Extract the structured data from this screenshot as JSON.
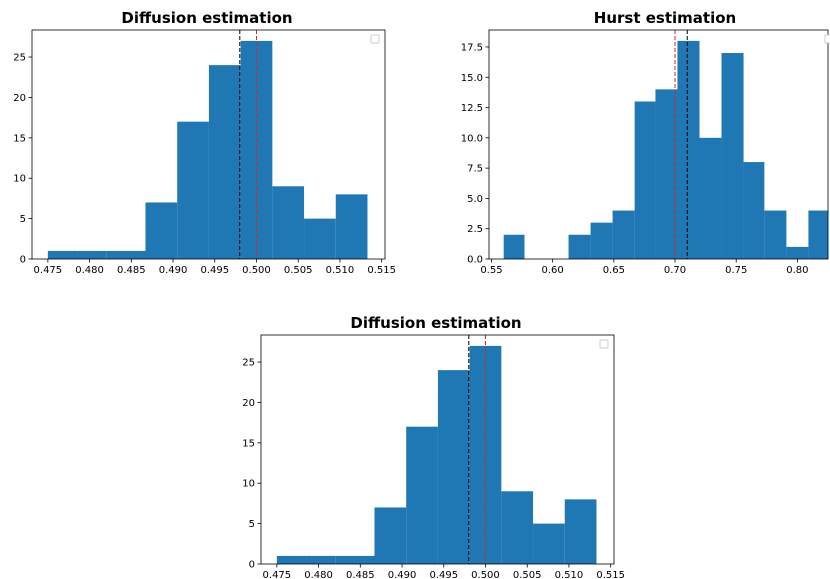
{
  "chart_data": [
    {
      "type": "bar",
      "title": "Diffusion estimation",
      "xlabel": "",
      "ylabel": "",
      "xlim": [
        0.4731,
        0.5154
      ],
      "ylim": [
        0,
        28.35
      ],
      "bins": [
        {
          "x0": 0.475,
          "x1": 0.4785,
          "count": 1
        },
        {
          "x0": 0.4785,
          "x1": 0.482,
          "count": 1
        },
        {
          "x0": 0.482,
          "x1": 0.4867,
          "count": 1
        },
        {
          "x0": 0.4867,
          "x1": 0.4905,
          "count": 7
        },
        {
          "x0": 0.4905,
          "x1": 0.4943,
          "count": 17
        },
        {
          "x0": 0.4943,
          "x1": 0.4981,
          "count": 24
        },
        {
          "x0": 0.4981,
          "x1": 0.5019,
          "count": 27
        },
        {
          "x0": 0.5019,
          "x1": 0.5057,
          "count": 9
        },
        {
          "x0": 0.5057,
          "x1": 0.5095,
          "count": 5
        },
        {
          "x0": 0.5095,
          "x1": 0.5133,
          "count": 8
        }
      ],
      "vlines": [
        {
          "x": 0.498,
          "color": "#000000",
          "style": "dashed"
        },
        {
          "x": 0.5,
          "color": "#d62728",
          "style": "dashed"
        }
      ],
      "xticks": [
        "0.475",
        "0.480",
        "0.485",
        "0.490",
        "0.495",
        "0.500",
        "0.505",
        "0.510",
        "0.515"
      ],
      "yticks": [
        "0",
        "5",
        "10",
        "15",
        "20",
        "25"
      ],
      "legend": "top-right (empty)",
      "grid": false,
      "bar_color": "#1f77b4"
    },
    {
      "type": "bar",
      "title": "Hurst estimation",
      "xlabel": "",
      "ylabel": "",
      "xlim": [
        0.548,
        0.825
      ],
      "ylim": [
        0,
        18.9
      ],
      "bins": [
        {
          "x0": 0.56,
          "x1": 0.577,
          "count": 2
        },
        {
          "x0": 0.577,
          "x1": 0.595,
          "count": 0
        },
        {
          "x0": 0.595,
          "x1": 0.613,
          "count": 0
        },
        {
          "x0": 0.613,
          "x1": 0.631,
          "count": 2
        },
        {
          "x0": 0.631,
          "x1": 0.649,
          "count": 3
        },
        {
          "x0": 0.649,
          "x1": 0.667,
          "count": 4
        },
        {
          "x0": 0.667,
          "x1": 0.684,
          "count": 13
        },
        {
          "x0": 0.684,
          "x1": 0.702,
          "count": 14
        },
        {
          "x0": 0.702,
          "x1": 0.72,
          "count": 18
        },
        {
          "x0": 0.72,
          "x1": 0.738,
          "count": 10
        },
        {
          "x0": 0.738,
          "x1": 0.756,
          "count": 17
        },
        {
          "x0": 0.756,
          "x1": 0.773,
          "count": 8
        },
        {
          "x0": 0.773,
          "x1": 0.791,
          "count": 4
        },
        {
          "x0": 0.791,
          "x1": 0.809,
          "count": 1
        },
        {
          "x0": 0.809,
          "x1": 0.825,
          "count": 4
        }
      ],
      "vlines": [
        {
          "x": 0.7,
          "color": "#d62728",
          "style": "dashed"
        },
        {
          "x": 0.71,
          "color": "#000000",
          "style": "dashed"
        }
      ],
      "xticks": [
        "0.55",
        "0.60",
        "0.65",
        "0.70",
        "0.75",
        "0.80"
      ],
      "yticks": [
        "0.0",
        "2.5",
        "5.0",
        "7.5",
        "10.0",
        "12.5",
        "15.0",
        "17.5"
      ],
      "legend": "top-right (empty)",
      "grid": false,
      "bar_color": "#1f77b4"
    },
    {
      "type": "bar",
      "title": "Diffusion estimation",
      "xlabel": "",
      "ylabel": "",
      "xlim": [
        0.4731,
        0.5154
      ],
      "ylim": [
        0,
        28.35
      ],
      "bins": [
        {
          "x0": 0.475,
          "x1": 0.4785,
          "count": 1
        },
        {
          "x0": 0.4785,
          "x1": 0.482,
          "count": 1
        },
        {
          "x0": 0.482,
          "x1": 0.4867,
          "count": 1
        },
        {
          "x0": 0.4867,
          "x1": 0.4905,
          "count": 7
        },
        {
          "x0": 0.4905,
          "x1": 0.4943,
          "count": 17
        },
        {
          "x0": 0.4943,
          "x1": 0.4981,
          "count": 24
        },
        {
          "x0": 0.4981,
          "x1": 0.5019,
          "count": 27
        },
        {
          "x0": 0.5019,
          "x1": 0.5057,
          "count": 9
        },
        {
          "x0": 0.5057,
          "x1": 0.5095,
          "count": 5
        },
        {
          "x0": 0.5095,
          "x1": 0.5133,
          "count": 8
        }
      ],
      "vlines": [
        {
          "x": 0.498,
          "color": "#000000",
          "style": "dashed"
        },
        {
          "x": 0.5,
          "color": "#d62728",
          "style": "dashed"
        }
      ],
      "xticks": [
        "0.475",
        "0.480",
        "0.485",
        "0.490",
        "0.495",
        "0.500",
        "0.505",
        "0.510",
        "0.515"
      ],
      "yticks": [
        "0",
        "5",
        "10",
        "15",
        "20",
        "25"
      ],
      "legend": "top-right (empty)",
      "grid": false,
      "bar_color": "#1f77b4"
    }
  ]
}
